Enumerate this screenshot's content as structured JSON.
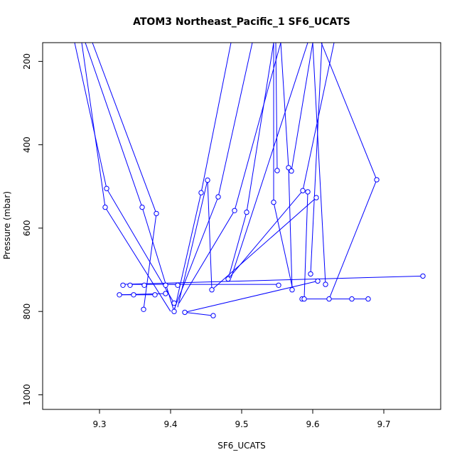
{
  "chart_data": {
    "type": "line",
    "title": "ATOM3 Northeast_Pacific_1 SF6_UCATS",
    "xlabel": "SF6_UCATS",
    "ylabel": "Pressure (mbar)",
    "xlim": [
      9.22,
      9.78
    ],
    "ylim": [
      1035,
      155
    ],
    "y_reversed": true,
    "x_ticks": [
      9.3,
      9.4,
      9.5,
      9.6,
      9.7
    ],
    "y_ticks": [
      200,
      400,
      600,
      800,
      1000
    ],
    "color": "#0000FF",
    "marker": "open-circle",
    "line_segments": [
      [
        [
          9.265,
          155
        ],
        [
          9.31,
          505
        ],
        [
          9.405,
          780
        ]
      ],
      [
        [
          9.275,
          155
        ],
        [
          9.308,
          550
        ],
        [
          9.4,
          800
        ]
      ],
      [
        [
          9.28,
          155
        ],
        [
          9.36,
          550
        ],
        [
          9.405,
          800
        ]
      ],
      [
        [
          9.29,
          155
        ],
        [
          9.38,
          565
        ],
        [
          9.362,
          795
        ]
      ],
      [
        [
          9.405,
          800
        ],
        [
          9.443,
          515
        ],
        [
          9.485,
          155
        ]
      ],
      [
        [
          9.41,
          790
        ],
        [
          9.452,
          485
        ],
        [
          9.458,
          748
        ]
      ],
      [
        [
          9.405,
          795
        ],
        [
          9.467,
          525
        ],
        [
          9.515,
          155
        ]
      ],
      [
        [
          9.412,
          780
        ],
        [
          9.49,
          558
        ],
        [
          9.555,
          155
        ]
      ],
      [
        [
          9.42,
          802
        ],
        [
          9.607,
          727
        ]
      ],
      [
        [
          9.42,
          802
        ],
        [
          9.46,
          810
        ]
      ],
      [
        [
          9.481,
          722
        ],
        [
          9.507,
          562
        ],
        [
          9.545,
          155
        ]
      ],
      [
        [
          9.481,
          722
        ],
        [
          9.586,
          510
        ]
      ],
      [
        [
          9.458,
          748
        ],
        [
          9.605,
          527
        ]
      ],
      [
        [
          9.485,
          720
        ],
        [
          9.593,
          155
        ]
      ],
      [
        [
          9.545,
          538
        ],
        [
          9.545,
          155
        ]
      ],
      [
        [
          9.545,
          538
        ],
        [
          9.572,
          748
        ]
      ],
      [
        [
          9.55,
          462
        ],
        [
          9.548,
          155
        ]
      ],
      [
        [
          9.566,
          455
        ],
        [
          9.555,
          155
        ]
      ],
      [
        [
          9.57,
          463
        ],
        [
          9.6,
          155
        ]
      ],
      [
        [
          9.566,
          455
        ],
        [
          9.571,
          748
        ]
      ],
      [
        [
          9.586,
          510
        ],
        [
          9.63,
          155
        ]
      ],
      [
        [
          9.593,
          513
        ],
        [
          9.588,
          770
        ]
      ],
      [
        [
          9.597,
          710
        ],
        [
          9.613,
          155
        ]
      ],
      [
        [
          9.612,
          155
        ],
        [
          9.69,
          484
        ]
      ],
      [
        [
          9.69,
          484
        ],
        [
          9.623,
          770
        ]
      ],
      [
        [
          9.585,
          770
        ],
        [
          9.678,
          770
        ]
      ],
      [
        [
          9.6,
          155
        ],
        [
          9.618,
          735
        ]
      ],
      [
        [
          9.33,
          735
        ],
        [
          9.755,
          715
        ]
      ],
      [
        [
          9.328,
          760
        ],
        [
          9.393,
          757
        ]
      ],
      [
        [
          9.345,
          735
        ],
        [
          9.41,
          735
        ]
      ],
      [
        [
          9.33,
          760
        ],
        [
          9.378,
          760
        ]
      ],
      [
        [
          9.39,
          735
        ],
        [
          9.55,
          735
        ]
      ]
    ],
    "points": [
      [
        9.31,
        505
      ],
      [
        9.308,
        550
      ],
      [
        9.36,
        550
      ],
      [
        9.38,
        565
      ],
      [
        9.362,
        795
      ],
      [
        9.405,
        780
      ],
      [
        9.405,
        800
      ],
      [
        9.42,
        802
      ],
      [
        9.46,
        810
      ],
      [
        9.443,
        515
      ],
      [
        9.452,
        485
      ],
      [
        9.458,
        748
      ],
      [
        9.467,
        525
      ],
      [
        9.481,
        722
      ],
      [
        9.49,
        558
      ],
      [
        9.507,
        562
      ],
      [
        9.545,
        538
      ],
      [
        9.55,
        462
      ],
      [
        9.566,
        455
      ],
      [
        9.57,
        463
      ],
      [
        9.571,
        748
      ],
      [
        9.552,
        737
      ],
      [
        9.586,
        510
      ],
      [
        9.593,
        513
      ],
      [
        9.605,
        527
      ],
      [
        9.597,
        710
      ],
      [
        9.607,
        727
      ],
      [
        9.618,
        735
      ],
      [
        9.585,
        770
      ],
      [
        9.588,
        770
      ],
      [
        9.623,
        770
      ],
      [
        9.655,
        770
      ],
      [
        9.678,
        770
      ],
      [
        9.69,
        484
      ],
      [
        9.755,
        715
      ],
      [
        9.328,
        760
      ],
      [
        9.348,
        760
      ],
      [
        9.378,
        760
      ],
      [
        9.393,
        757
      ],
      [
        9.333,
        737
      ],
      [
        9.343,
        737
      ],
      [
        9.363,
        737
      ],
      [
        9.393,
        737
      ],
      [
        9.41,
        737
      ]
    ]
  }
}
